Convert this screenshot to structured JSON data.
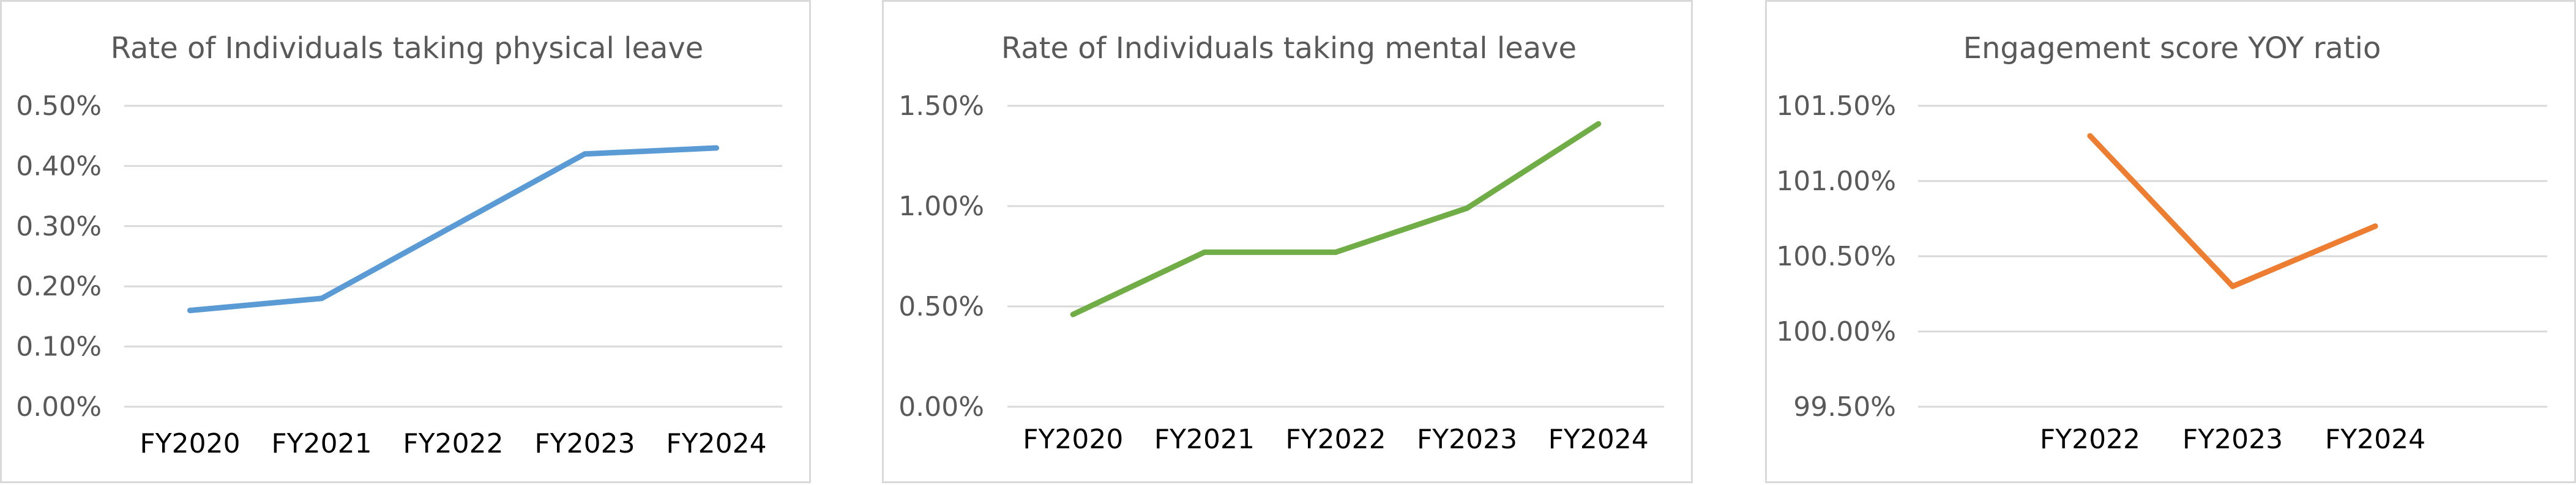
{
  "chart_data": [
    {
      "type": "line",
      "title": "Rate of Individuals taking physical leave",
      "xlabel": "",
      "ylabel": "",
      "categories": [
        "FY2020",
        "FY2021",
        "FY2022",
        "FY2023",
        "FY2024"
      ],
      "series": [
        {
          "values": [
            0.16,
            0.18,
            0.3,
            0.42,
            0.43
          ],
          "color": "#5b9bd5"
        }
      ],
      "ylim": [
        0,
        0.5
      ],
      "yticks": [
        "0.00%",
        "0.10%",
        "0.20%",
        "0.30%",
        "0.40%",
        "0.50%"
      ],
      "grid": true,
      "legend": "none"
    },
    {
      "type": "line",
      "title": "Rate of Individuals taking mental leave",
      "xlabel": "",
      "ylabel": "",
      "categories": [
        "FY2020",
        "FY2021",
        "FY2022",
        "FY2023",
        "FY2024"
      ],
      "series": [
        {
          "values": [
            0.46,
            0.77,
            0.77,
            0.99,
            1.41
          ],
          "color": "#70ad47"
        }
      ],
      "ylim": [
        0,
        1.5
      ],
      "yticks": [
        "0.00%",
        "0.50%",
        "1.00%",
        "1.50%"
      ],
      "grid": true,
      "legend": "none"
    },
    {
      "type": "line",
      "title": "Engagement score YOY ratio",
      "xlabel": "",
      "ylabel": "",
      "categories": [
        "FY2022",
        "FY2023",
        "FY2024"
      ],
      "series": [
        {
          "values": [
            101.3,
            100.3,
            100.7
          ],
          "color": "#ed7d31"
        }
      ],
      "ylim": [
        99.5,
        101.5
      ],
      "yticks": [
        "99.50%",
        "100.00%",
        "100.50%",
        "101.00%",
        "101.50%"
      ],
      "grid": true,
      "legend": "none"
    }
  ]
}
